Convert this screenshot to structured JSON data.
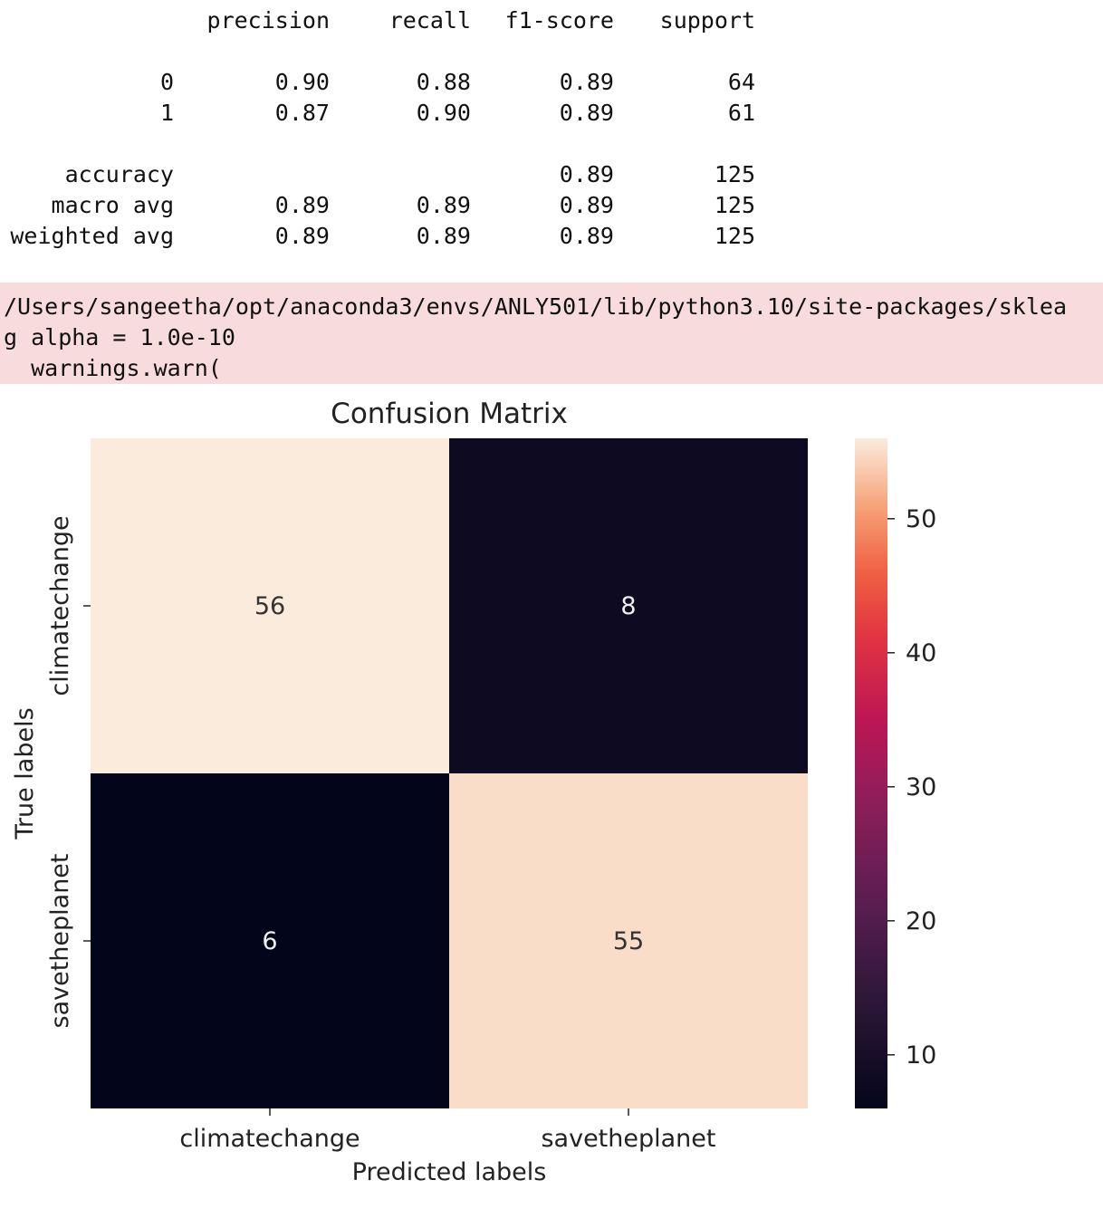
{
  "report": {
    "headers": [
      "precision",
      "recall",
      "f1-score",
      "support"
    ],
    "rows": [
      {
        "label": "0",
        "precision": "0.90",
        "recall": "0.88",
        "f1": "0.89",
        "support": "64"
      },
      {
        "label": "1",
        "precision": "0.87",
        "recall": "0.90",
        "f1": "0.89",
        "support": "61"
      },
      {
        "label": "accuracy",
        "precision": "",
        "recall": "",
        "f1": "0.89",
        "support": "125"
      },
      {
        "label": "macro avg",
        "precision": "0.89",
        "recall": "0.89",
        "f1": "0.89",
        "support": "125"
      },
      {
        "label": "weighted avg",
        "precision": "0.89",
        "recall": "0.89",
        "f1": "0.89",
        "support": "125"
      }
    ]
  },
  "warning": {
    "lines": [
      "/Users/sangeetha/opt/anaconda3/envs/ANLY501/lib/python3.10/site-packages/sklea",
      "g alpha = 1.0e-10",
      "  warnings.warn("
    ],
    "background": "#f8dcdd"
  },
  "chart_data": {
    "type": "heatmap",
    "title": "Confusion Matrix",
    "xlabel": "Predicted labels",
    "ylabel": "True labels",
    "x_categories": [
      "climatechange",
      "savetheplanet"
    ],
    "y_categories": [
      "climatechange",
      "savetheplanet"
    ],
    "values": [
      [
        56,
        8
      ],
      [
        6,
        55
      ]
    ],
    "colorbar": {
      "min": 6,
      "max": 56,
      "ticks": [
        10,
        20,
        30,
        40,
        50
      ]
    },
    "colormap": "rocket"
  }
}
